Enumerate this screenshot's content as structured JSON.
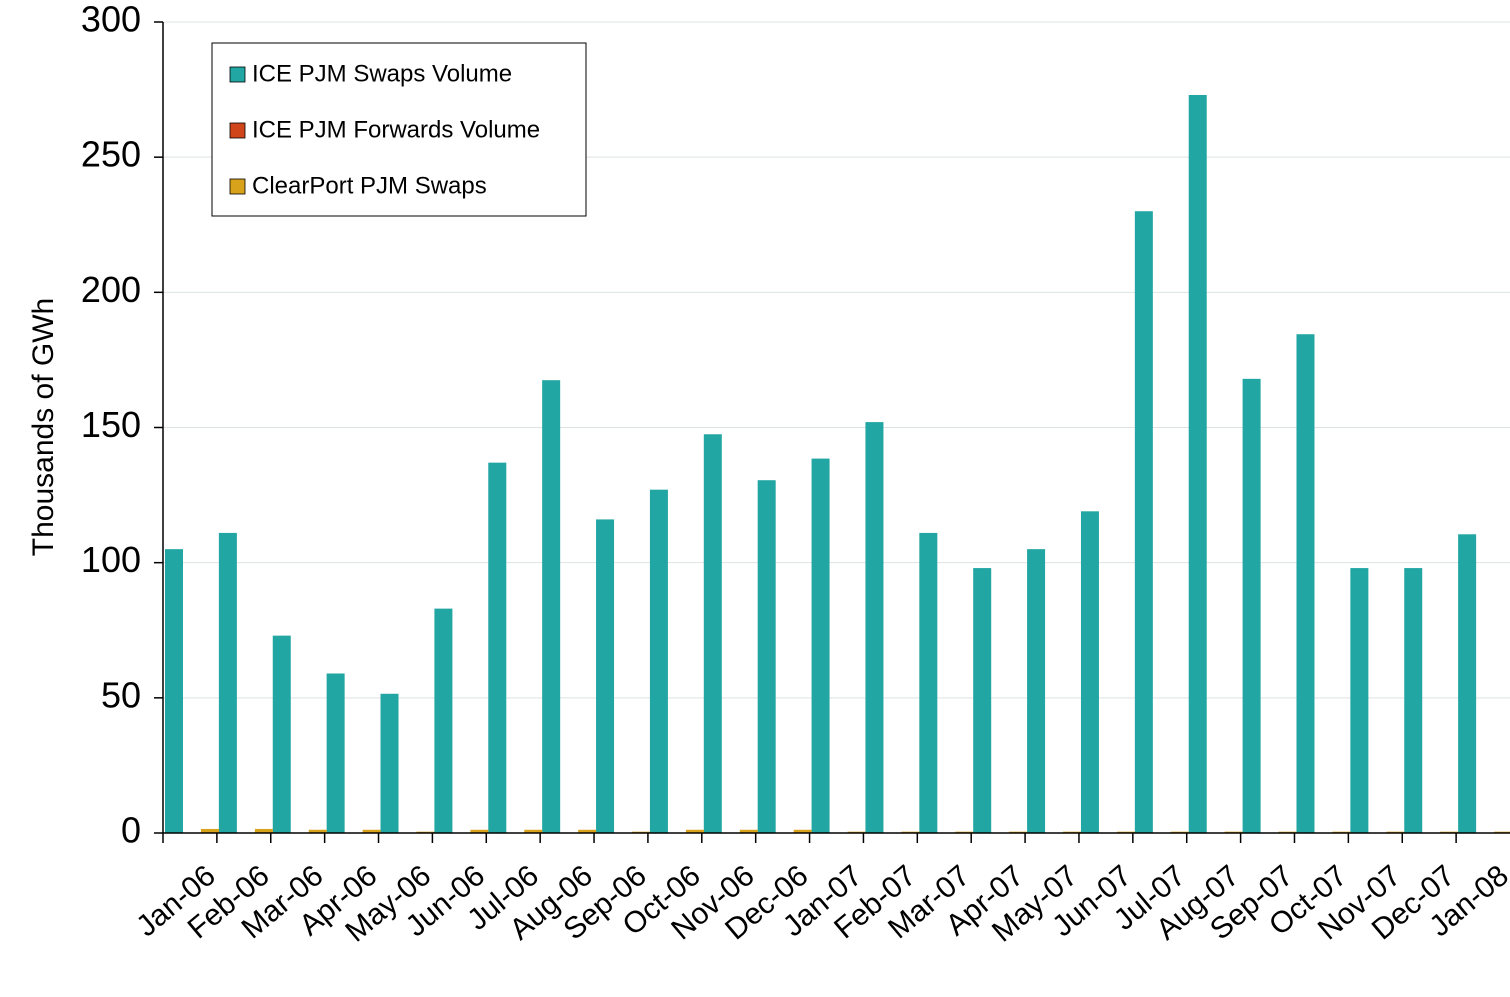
{
  "chart_data": {
    "type": "bar",
    "y_label": "Thousands of GWh",
    "categories": [
      "Jan-06",
      "Feb-06",
      "Mar-06",
      "Apr-06",
      "May-06",
      "Jun-06",
      "Jul-06",
      "Aug-06",
      "Sep-06",
      "Oct-06",
      "Nov-06",
      "Dec-06",
      "Jan-07",
      "Feb-07",
      "Mar-07",
      "Apr-07",
      "May-07",
      "Jun-07",
      "Jul-07",
      "Aug-07",
      "Sep-07",
      "Oct-07",
      "Nov-07",
      "Dec-07",
      "Jan-08"
    ],
    "series": [
      {
        "name": "ICE PJM Swaps Volume",
        "color": "#21a6a3",
        "values": [
          105,
          111,
          73,
          59,
          51.5,
          83,
          137,
          167.5,
          116,
          127,
          147.5,
          130.5,
          138.5,
          152,
          111,
          98,
          105,
          119,
          230,
          273,
          168,
          184.5,
          98,
          98,
          110.5
        ]
      },
      {
        "name": "ICE PJM Forwards Volume",
        "color": "#d0461a",
        "values": [
          0,
          0,
          0,
          0,
          0,
          0,
          0,
          0,
          0,
          0,
          0,
          0,
          0,
          0,
          0,
          0,
          0,
          0,
          0,
          0,
          0,
          0,
          0,
          0,
          0
        ]
      },
      {
        "name": "ClearPort PJM Swaps",
        "color": "#d9a21b",
        "values": [
          1.5,
          1.5,
          1.2,
          1.2,
          0.5,
          1.2,
          1.2,
          1.2,
          0.5,
          1.2,
          1.2,
          1.2,
          0.5,
          0.5,
          0.5,
          0.5,
          0.5,
          0.5,
          0.5,
          0.5,
          0.5,
          0.5,
          0.5,
          0.5,
          0.5
        ]
      }
    ],
    "ylim": [
      0,
      300
    ],
    "yticks": [
      0,
      50,
      100,
      150,
      200,
      250,
      300
    ],
    "grid": true,
    "legend": "top-left"
  }
}
